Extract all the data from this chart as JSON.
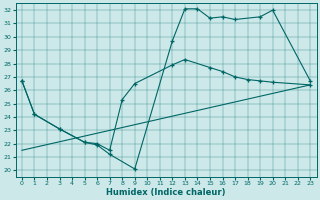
{
  "xlabel": "Humidex (Indice chaleur)",
  "bg_color": "#cce8e8",
  "line_color": "#006666",
  "xlim": [
    -0.5,
    23.5
  ],
  "ylim": [
    19.5,
    32.5
  ],
  "xticks": [
    0,
    1,
    2,
    3,
    4,
    5,
    6,
    7,
    8,
    9,
    10,
    11,
    12,
    13,
    14,
    15,
    16,
    17,
    18,
    19,
    20,
    21,
    22,
    23
  ],
  "yticks": [
    20,
    21,
    22,
    23,
    24,
    25,
    26,
    27,
    28,
    29,
    30,
    31,
    32
  ],
  "line1_x": [
    0,
    1,
    3,
    5,
    6,
    7,
    9,
    12,
    13,
    14,
    15,
    16,
    17,
    19,
    20,
    23
  ],
  "line1_y": [
    26.7,
    24.2,
    23.1,
    22.1,
    21.9,
    21.2,
    20.1,
    29.7,
    32.1,
    32.1,
    31.4,
    31.5,
    31.3,
    31.5,
    32.0,
    26.7
  ],
  "line2_x": [
    0,
    1,
    3,
    5,
    6,
    7,
    8,
    9,
    12,
    13,
    15,
    16,
    17,
    18,
    19,
    20,
    23
  ],
  "line2_y": [
    26.7,
    24.2,
    23.1,
    22.1,
    22.0,
    21.5,
    25.3,
    26.5,
    27.9,
    28.3,
    27.7,
    27.4,
    27.0,
    26.8,
    26.7,
    26.6,
    26.4
  ],
  "line3_x": [
    0,
    23
  ],
  "line3_y": [
    21.5,
    26.4
  ]
}
